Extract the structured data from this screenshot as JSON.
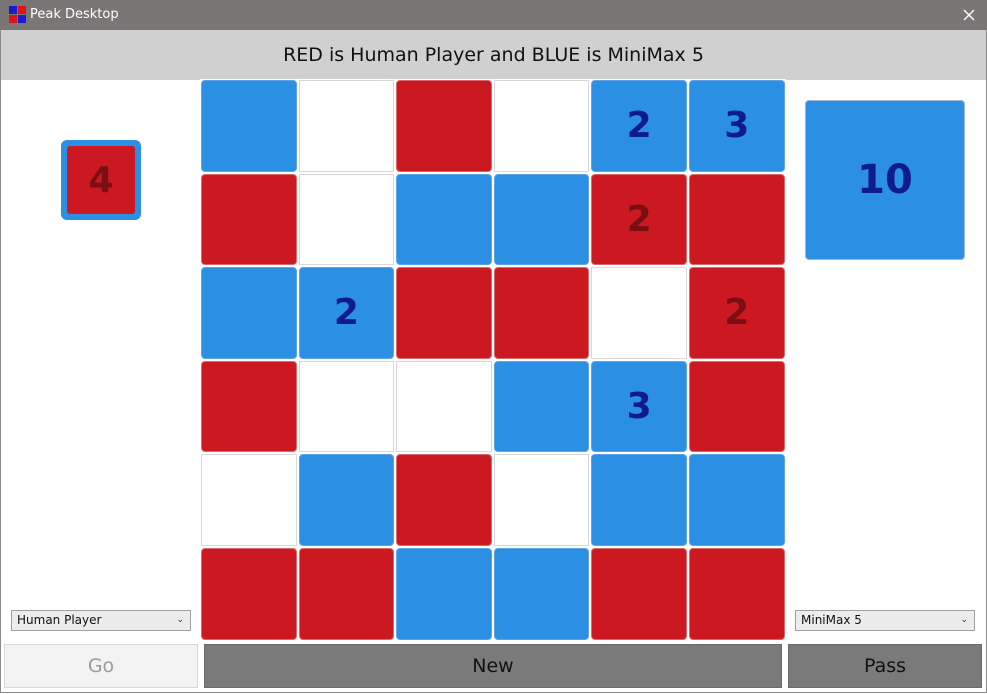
{
  "window": {
    "title": "Peak Desktop"
  },
  "status": {
    "text": "RED is Human Player and BLUE is MiniMax 5"
  },
  "scores": {
    "red": "4",
    "blue": "10"
  },
  "players": {
    "red_select": "Human Player",
    "blue_select": "MiniMax 5"
  },
  "buttons": {
    "go": "Go",
    "new": "New",
    "pass": "Pass"
  },
  "board": {
    "rows": 6,
    "cols": 6,
    "cells": [
      [
        {
          "color": "blue",
          "value": ""
        },
        {
          "color": "white",
          "value": ""
        },
        {
          "color": "red",
          "value": ""
        },
        {
          "color": "white",
          "value": ""
        },
        {
          "color": "blue",
          "value": "2"
        },
        {
          "color": "blue",
          "value": "3"
        }
      ],
      [
        {
          "color": "red",
          "value": ""
        },
        {
          "color": "white",
          "value": ""
        },
        {
          "color": "blue",
          "value": ""
        },
        {
          "color": "blue",
          "value": ""
        },
        {
          "color": "red",
          "value": "2"
        },
        {
          "color": "red",
          "value": ""
        }
      ],
      [
        {
          "color": "blue",
          "value": ""
        },
        {
          "color": "blue",
          "value": "2"
        },
        {
          "color": "red",
          "value": ""
        },
        {
          "color": "red",
          "value": ""
        },
        {
          "color": "white",
          "value": ""
        },
        {
          "color": "red",
          "value": "2"
        }
      ],
      [
        {
          "color": "red",
          "value": ""
        },
        {
          "color": "white",
          "value": ""
        },
        {
          "color": "white",
          "value": ""
        },
        {
          "color": "blue",
          "value": ""
        },
        {
          "color": "blue",
          "value": "3"
        },
        {
          "color": "red",
          "value": ""
        }
      ],
      [
        {
          "color": "white",
          "value": ""
        },
        {
          "color": "blue",
          "value": ""
        },
        {
          "color": "red",
          "value": ""
        },
        {
          "color": "white",
          "value": ""
        },
        {
          "color": "blue",
          "value": ""
        },
        {
          "color": "blue",
          "value": ""
        }
      ],
      [
        {
          "color": "red",
          "value": ""
        },
        {
          "color": "red",
          "value": ""
        },
        {
          "color": "blue",
          "value": ""
        },
        {
          "color": "blue",
          "value": ""
        },
        {
          "color": "red",
          "value": ""
        },
        {
          "color": "red",
          "value": ""
        }
      ]
    ]
  },
  "colors": {
    "red": "#cc1820",
    "blue": "#2b8fe3",
    "titlebar": "#7a7676",
    "statusbar": "#d0d0d0"
  },
  "icons": {
    "app": "peak-app-icon",
    "close": "close-icon",
    "dropdown": "chevron-down-icon"
  }
}
